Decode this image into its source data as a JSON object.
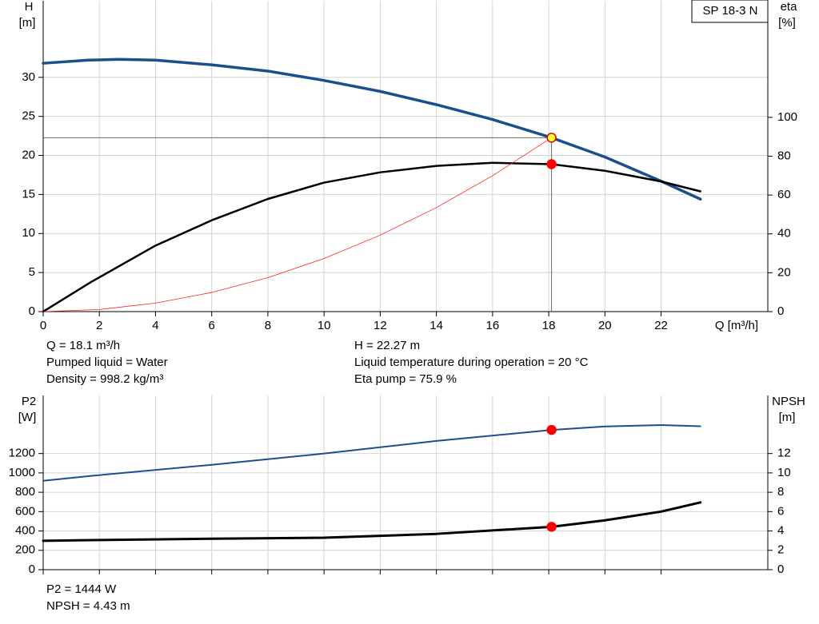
{
  "chart_data": [
    {
      "type": "line",
      "title": "SP 18-3 N",
      "ylabel": "H",
      "yunit": "[m]",
      "y2label": "eta",
      "y2unit": "[%]",
      "xlabel": "Q [m³/h]",
      "xlim": [
        0,
        25.8
      ],
      "xticks": [
        0,
        2,
        4,
        6,
        8,
        10,
        12,
        14,
        16,
        18,
        20,
        22
      ],
      "ylim": [
        0,
        39.8
      ],
      "yticks": [
        0,
        5,
        10,
        15,
        20,
        25,
        30
      ],
      "y2lim": [
        0,
        160
      ],
      "y2ticks": [
        0,
        20,
        40,
        60,
        80,
        100
      ],
      "grid": true,
      "series": [
        {
          "color": "#1a4f8b",
          "width": 3.5,
          "x": [
            0,
            1.6,
            2.7,
            4,
            6,
            8,
            10,
            12,
            14,
            16,
            18.1,
            20,
            22,
            23.4
          ],
          "values": [
            31.8,
            32.2,
            32.3,
            32.2,
            31.6,
            30.8,
            29.6,
            28.2,
            26.5,
            24.6,
            22.27,
            19.8,
            16.7,
            14.4
          ]
        },
        {
          "color": "#000000",
          "width": 2.5,
          "axis": "y2",
          "x": [
            0,
            1.7,
            4,
            6,
            8,
            10,
            12,
            14,
            16,
            18.1,
            20,
            22,
            23.4
          ],
          "values": [
            0,
            15.2,
            34,
            47,
            58,
            66.4,
            71.7,
            75,
            76.6,
            75.9,
            72.5,
            67,
            61.9
          ]
        },
        {
          "color": "#ff2020",
          "width": 0.8,
          "x": [
            0,
            2,
            4,
            6,
            8,
            10,
            12,
            14,
            16,
            18.1
          ],
          "values": [
            0,
            0.27,
            1.09,
            2.45,
            4.35,
            6.8,
            9.79,
            13.32,
            17.4,
            22.27
          ]
        }
      ],
      "points": [
        {
          "x": 18.1,
          "y": 22.27,
          "fill": "#ffff33",
          "stroke": "#e00000",
          "guide_lines": true
        },
        {
          "x": 18.1,
          "y": 75.9,
          "axis": "y2",
          "fill": "#ff0000",
          "stroke": "#ff0000"
        }
      ],
      "annotations": [
        [
          "Q = 18.1 m³/h",
          "Pumped liquid = Water",
          "Density = 998.2 kg/m³"
        ],
        [
          "H = 22.27 m",
          "Liquid temperature during operation = 20 °C",
          "Eta pump = 75.9 %"
        ]
      ]
    },
    {
      "type": "line",
      "ylabel": "P2",
      "yunit": "[W]",
      "y2label": "NPSH",
      "y2unit": "[m]",
      "xlim": [
        0,
        25.8
      ],
      "xticks": [
        0,
        2,
        4,
        6,
        8,
        10,
        12,
        14,
        16,
        18,
        20,
        22
      ],
      "xtick_labels": false,
      "ylim": [
        0,
        1800
      ],
      "yticks": [
        0,
        200,
        400,
        600,
        800,
        1000,
        1200
      ],
      "y2lim": [
        0,
        18
      ],
      "y2ticks": [
        0,
        2,
        4,
        6,
        8,
        10,
        12
      ],
      "grid": true,
      "series": [
        {
          "color": "#1a4f8b",
          "width": 2,
          "x": [
            0,
            1.7,
            6,
            10,
            14,
            18.1,
            20,
            22,
            23.4
          ],
          "values": [
            919,
            969,
            1084,
            1200,
            1330,
            1444,
            1480,
            1495,
            1482
          ]
        },
        {
          "color": "#000000",
          "width": 3,
          "axis": "y2",
          "x": [
            0,
            1.7,
            6,
            10,
            14,
            18.1,
            20,
            22,
            23.4
          ],
          "values": [
            2.98,
            3.05,
            3.2,
            3.3,
            3.7,
            4.43,
            5.1,
            6.0,
            6.95
          ]
        }
      ],
      "points": [
        {
          "x": 18.1,
          "y": 1444,
          "fill": "#ff0000",
          "stroke": "#ff0000"
        },
        {
          "x": 18.1,
          "y": 4.43,
          "axis": "y2",
          "fill": "#ff0000",
          "stroke": "#ff0000"
        }
      ],
      "annotations": [
        [
          "P2 = 1444 W",
          "NPSH = 4.43 m"
        ]
      ]
    }
  ]
}
